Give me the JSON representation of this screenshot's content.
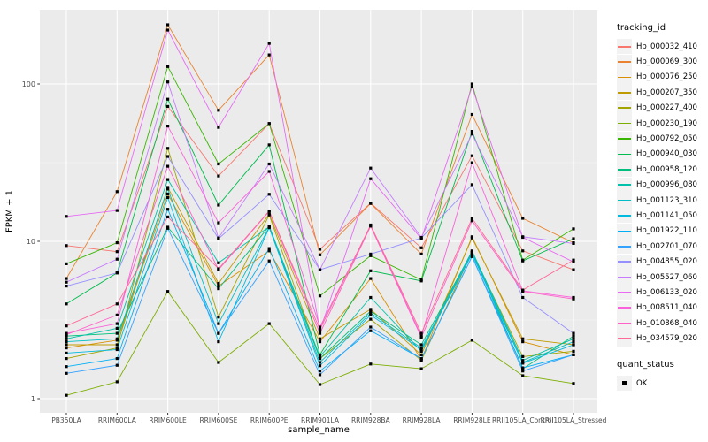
{
  "chart_data": {
    "type": "line",
    "xlabel": "sample_name",
    "ylabel": "FPKM + 1",
    "y_scale": "log10",
    "y_ticks": [
      1,
      10,
      100
    ],
    "y_minor_ticks": [
      3.1623,
      31.623
    ],
    "ylim": [
      0.81,
      300
    ],
    "grid": "white major and minor on gray panel",
    "panel_bg": "#EBEBEB",
    "grid_color": "#FFFFFF",
    "axis_text_color": "#4D4D4D",
    "marker": "filled-black-square",
    "legend_position": "right",
    "legend_title": "tracking_id",
    "categories": [
      "PB350LA",
      "RRIM600LA",
      "RRIM600LE",
      "RRIM600SE",
      "RRIM600PE",
      "RRIM901LA",
      "RRIM928BA",
      "RRIM928LA",
      "RRIM928LE",
      "RRII105LA_Control",
      "RRII105LA_Stressed"
    ],
    "series": [
      {
        "name": "Hb_000032_410",
        "color": "#F8766D",
        "values": [
          9.4,
          8.6,
          72,
          26,
          56,
          8.9,
          17.5,
          9.1,
          35,
          8.7,
          6.6
        ]
      },
      {
        "name": "Hb_000069_300",
        "color": "#EA8331",
        "values": [
          5.8,
          20.7,
          238,
          68,
          153,
          8.2,
          17.4,
          8.3,
          64,
          14.0,
          9.8
        ]
      },
      {
        "name": "Hb_000076_250",
        "color": "#D89000",
        "values": [
          2.1,
          2.35,
          20,
          5.2,
          8.7,
          2.3,
          5.8,
          1.77,
          10.7,
          2.3,
          1.9
        ]
      },
      {
        "name": "Hb_000207_350",
        "color": "#C09B00",
        "values": [
          2.2,
          2.2,
          22,
          5.4,
          14.9,
          2.4,
          3.7,
          1.9,
          10.5,
          2.4,
          2.2
        ]
      },
      {
        "name": "Hb_000227_400",
        "color": "#A3A500",
        "values": [
          1.8,
          2.1,
          39,
          3.3,
          14.7,
          1.8,
          3.2,
          1.75,
          8.5,
          1.85,
          2.0
        ]
      },
      {
        "name": "Hb_000230_190",
        "color": "#7CAE00",
        "values": [
          1.05,
          1.28,
          4.8,
          1.7,
          3.0,
          1.23,
          1.66,
          1.55,
          2.35,
          1.4,
          1.25
        ]
      },
      {
        "name": "Hb_000792_050",
        "color": "#39B600",
        "values": [
          7.2,
          9.8,
          129,
          31,
          56,
          4.5,
          8.1,
          5.7,
          100,
          7.6,
          12.0
        ]
      },
      {
        "name": "Hb_000940_030",
        "color": "#00BB4E",
        "values": [
          4.0,
          6.3,
          80,
          17,
          41,
          1.9,
          6.5,
          5.6,
          50,
          7.5,
          10.4
        ]
      },
      {
        "name": "Hb_000958_120",
        "color": "#00BF7D",
        "values": [
          2.5,
          2.6,
          12.3,
          5.0,
          12.5,
          1.8,
          3.6,
          2.2,
          8.6,
          1.55,
          2.5
        ]
      },
      {
        "name": "Hb_000996_080",
        "color": "#00C1A9",
        "values": [
          2.4,
          2.8,
          24.7,
          7.3,
          12.4,
          1.85,
          4.4,
          2.0,
          8.7,
          1.75,
          2.4
        ]
      },
      {
        "name": "Hb_001123_310",
        "color": "#00BFC4",
        "values": [
          2.3,
          2.4,
          21.5,
          3.0,
          12.3,
          1.7,
          3.5,
          2.1,
          8.5,
          1.7,
          2.3
        ]
      },
      {
        "name": "Hb_001141_050",
        "color": "#00BAE0",
        "values": [
          1.95,
          2.05,
          19,
          2.3,
          12.2,
          1.62,
          3.4,
          2.05,
          8.3,
          1.68,
          2.2
        ]
      },
      {
        "name": "Hb_001922_110",
        "color": "#00B0F6",
        "values": [
          1.6,
          1.8,
          16,
          2.6,
          9.0,
          1.5,
          2.7,
          1.8,
          8.0,
          1.57,
          1.9
        ]
      },
      {
        "name": "Hb_002701_070",
        "color": "#35A2FF",
        "values": [
          1.45,
          1.63,
          12.1,
          2.6,
          7.5,
          1.42,
          2.85,
          1.8,
          8.0,
          1.5,
          1.9
        ]
      },
      {
        "name": "Hb_004855_020",
        "color": "#9590FF",
        "values": [
          5.2,
          6.3,
          34.6,
          10.4,
          19.9,
          6.6,
          8.3,
          10.5,
          22.9,
          4.4,
          2.6
        ]
      },
      {
        "name": "Hb_005527_060",
        "color": "#C77CFF",
        "values": [
          5.5,
          7.7,
          103,
          10.5,
          31,
          6.6,
          29.2,
          10.6,
          48,
          10.7,
          9.7
        ]
      },
      {
        "name": "Hb_006133_020",
        "color": "#E76BF3",
        "values": [
          14.4,
          15.7,
          220,
          53,
          181,
          2.7,
          25,
          10.4,
          96,
          10.6,
          7.4
        ]
      },
      {
        "name": "Hb_008511_040",
        "color": "#FA62DB",
        "values": [
          2.6,
          3.0,
          54,
          13.1,
          27.8,
          2.85,
          12.6,
          2.5,
          31.6,
          4.85,
          4.4
        ]
      },
      {
        "name": "Hb_010868_040",
        "color": "#FF61C9",
        "values": [
          2.55,
          3.4,
          30,
          6.6,
          15.5,
          2.6,
          12.5,
          2.45,
          13.5,
          4.8,
          4.3
        ]
      },
      {
        "name": "Hb_034579_020",
        "color": "#FF6A98",
        "values": [
          2.9,
          4.0,
          14.3,
          6.7,
          15.6,
          2.75,
          12.7,
          2.6,
          14.0,
          4.9,
          7.6
        ]
      }
    ],
    "legend2_title": "quant_status",
    "legend2_items": [
      {
        "label": "OK",
        "marker": "black-square"
      }
    ]
  }
}
